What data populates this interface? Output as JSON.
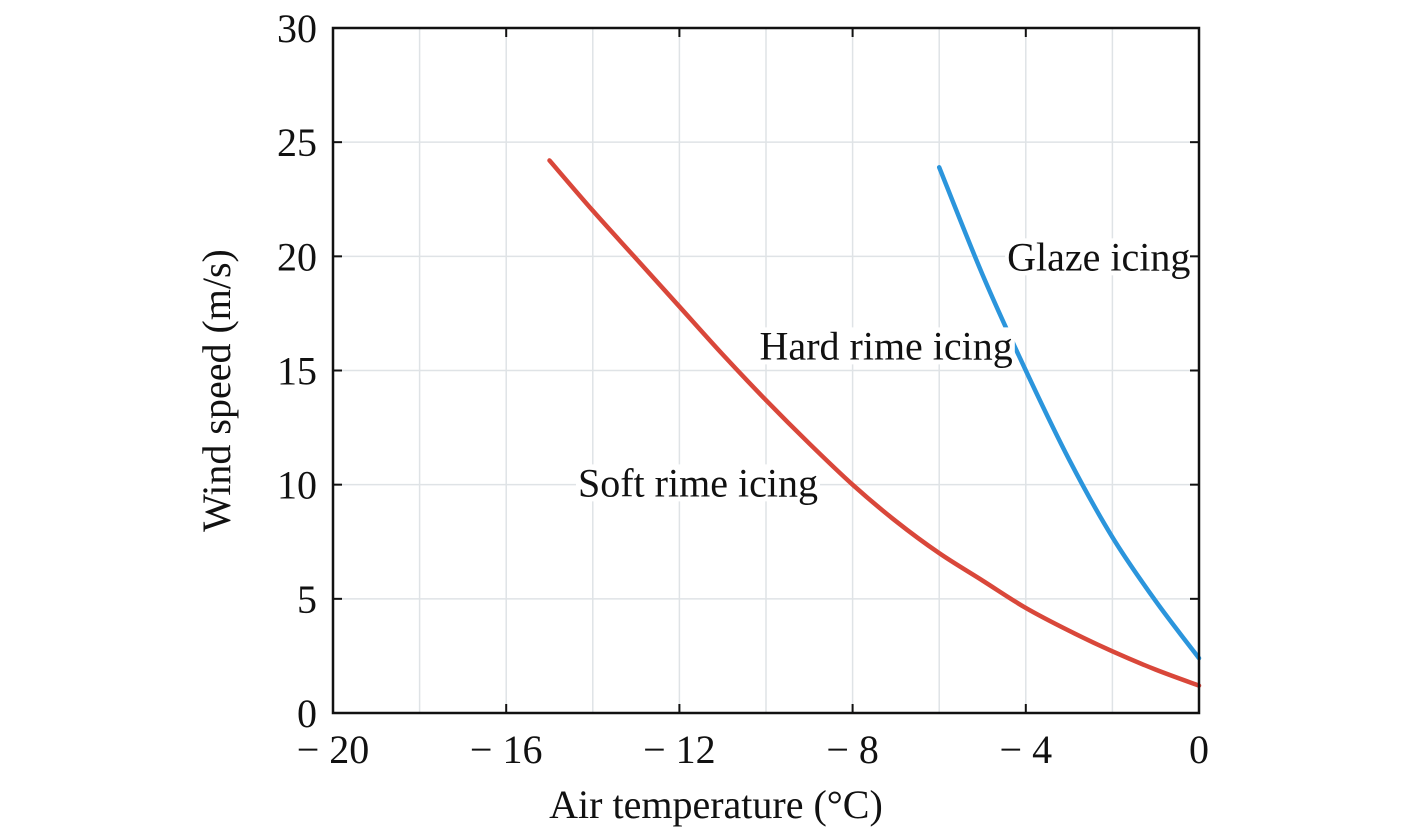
{
  "chart_data": {
    "type": "line",
    "title": "",
    "xlabel": "Air temperature (°C)",
    "ylabel": "Wind speed (m/s)",
    "xlim": [
      -20,
      0
    ],
    "ylim": [
      0,
      30
    ],
    "x_ticks": [
      -20,
      -16,
      -12,
      -8,
      -4,
      0
    ],
    "x_tick_labels": [
      "− 20",
      "− 16",
      "− 12",
      "− 8",
      "− 4",
      "0"
    ],
    "y_ticks": [
      0,
      5,
      10,
      15,
      20,
      25,
      30
    ],
    "y_tick_labels": [
      "0",
      "5",
      "10",
      "15",
      "20",
      "25",
      "30"
    ],
    "grid": true,
    "series": [
      {
        "color": "#d9473a",
        "x": [
          -15,
          -14,
          -13,
          -12,
          -11,
          -10,
          -9,
          -8,
          -7,
          -6,
          -5,
          -4,
          -3,
          -2,
          -1,
          0
        ],
        "y": [
          24.2,
          22.0,
          19.9,
          17.8,
          15.7,
          13.7,
          11.8,
          10.0,
          8.4,
          7.0,
          5.8,
          4.6,
          3.6,
          2.7,
          1.9,
          1.2
        ]
      },
      {
        "color": "#2b95dc",
        "x": [
          -6,
          -5,
          -4,
          -3,
          -2,
          -1,
          0
        ],
        "y": [
          23.9,
          19.2,
          15.0,
          11.1,
          7.7,
          4.9,
          2.4
        ]
      }
    ],
    "annotations": [
      {
        "text": "Glaze icing",
        "x": -0.2,
        "y": 20
      },
      {
        "text": "Hard rime icing",
        "x": -4.3,
        "y": 16.1
      },
      {
        "text": "Soft rime icing",
        "x": -8.8,
        "y": 10.1
      }
    ]
  }
}
